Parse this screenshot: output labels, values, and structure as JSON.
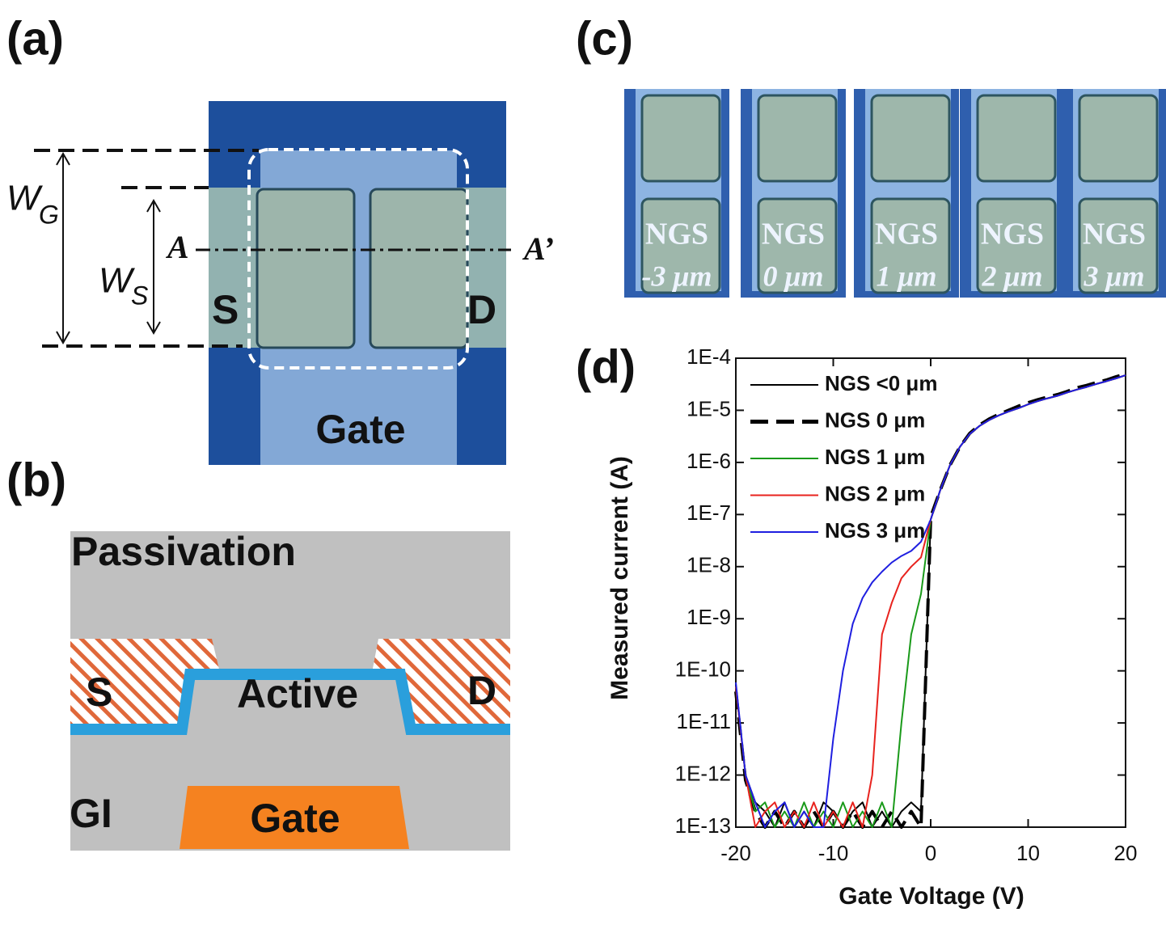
{
  "panel_a": {
    "label": "(a)",
    "wg": {
      "main": "W",
      "sub": "G"
    },
    "ws": {
      "main": "W",
      "sub": "S"
    },
    "section_start": "A",
    "section_end": "A’",
    "source": "S",
    "drain": "D",
    "gate": "Gate"
  },
  "panel_b": {
    "label": "(b)",
    "passivation": "Passivation",
    "source": "S",
    "active": "Active",
    "drain": "D",
    "gi": "GI",
    "gate": "Gate"
  },
  "panel_c": {
    "label": "(c)",
    "images": [
      {
        "line1": "NGS",
        "line2": "-3 μm"
      },
      {
        "line1": "NGS",
        "line2": "0 μm"
      },
      {
        "line1": "NGS",
        "line2": "1 μm"
      },
      {
        "line1": "NGS",
        "line2": "2 μm"
      },
      {
        "line1": "NGS",
        "line2": "3 μm"
      }
    ]
  },
  "chart_data": {
    "type": "line",
    "panel_label": "(d)",
    "x_label": "Gate Voltage (V)",
    "y_label": "Measured current (A)",
    "log_y": true,
    "xlim": [
      -20,
      20
    ],
    "xticks": [
      -20,
      -10,
      0,
      10,
      20
    ],
    "ylim": [
      1e-13,
      0.0001
    ],
    "yticks": [
      {
        "value": 1e-13,
        "label": "1E-13"
      },
      {
        "value": 1e-12,
        "label": "1E-12"
      },
      {
        "value": 1e-11,
        "label": "1E-11"
      },
      {
        "value": 1e-10,
        "label": "1E-10"
      },
      {
        "value": 1e-09,
        "label": "1E-9"
      },
      {
        "value": 1e-08,
        "label": "1E-8"
      },
      {
        "value": 1e-07,
        "label": "1E-7"
      },
      {
        "value": 1e-06,
        "label": "1E-6"
      },
      {
        "value": 1e-05,
        "label": "1E-5"
      },
      {
        "value": 0.0001,
        "label": "1E-4"
      }
    ],
    "legend": "top-left",
    "x": [
      -20,
      -19,
      -18,
      -17,
      -16,
      -15,
      -14,
      -13,
      -12,
      -11,
      -10,
      -9,
      -8,
      -7,
      -6,
      -5,
      -4,
      -3,
      -2,
      -1,
      0,
      1,
      2,
      3,
      4,
      5,
      6,
      7,
      8,
      9,
      10,
      11,
      12,
      13,
      14,
      15,
      16,
      17,
      18,
      19,
      20
    ],
    "series": [
      {
        "name": "NGS <0 μm",
        "color": "#000000",
        "style": "solid",
        "values": [
          5e-11,
          1e-12,
          3e-13,
          2e-13,
          1e-13,
          3e-13,
          1e-13,
          2e-13,
          1e-13,
          3e-13,
          2e-13,
          1e-13,
          2e-13,
          3e-13,
          1e-13,
          2e-13,
          1e-13,
          2e-13,
          3e-13,
          2e-13,
          8e-08,
          3e-07,
          9e-07,
          2e-06,
          3.5e-06,
          5e-06,
          6.5e-06,
          8e-06,
          9.5e-06,
          1.1e-05,
          1.3e-05,
          1.5e-05,
          1.7e-05,
          1.9e-05,
          2.2e-05,
          2.5e-05,
          2.8e-05,
          3.2e-05,
          3.6e-05,
          4.1e-05,
          4.7e-05
        ]
      },
      {
        "name": "NGS 0 μm",
        "color": "#000000",
        "style": "dashed",
        "values": [
          4e-11,
          8e-13,
          2e-13,
          1e-13,
          2e-13,
          1e-13,
          2e-13,
          1e-13,
          2e-13,
          1e-13,
          2e-13,
          1e-13,
          2e-13,
          1e-13,
          2e-13,
          1e-13,
          2e-13,
          1e-13,
          2e-13,
          1e-13,
          9e-08,
          3e-07,
          9e-07,
          2e-06,
          3.6e-06,
          5.2e-06,
          6.8e-06,
          8.4e-06,
          1e-05,
          1.2e-05,
          1.4e-05,
          1.6e-05,
          1.8e-05,
          2e-05,
          2.3e-05,
          2.7e-05,
          3e-05,
          3.4e-05,
          3.8e-05,
          4.4e-05,
          5e-05
        ]
      },
      {
        "name": "NGS 1 μm",
        "color": "#1a9a1a",
        "style": "solid",
        "values": [
          5e-11,
          1e-12,
          2e-13,
          3e-13,
          1e-13,
          2e-13,
          1e-13,
          3e-13,
          1e-13,
          2e-13,
          1e-13,
          3e-13,
          1e-13,
          2e-13,
          1e-13,
          3e-13,
          1e-13,
          1e-11,
          5e-10,
          3e-09,
          8e-08,
          3e-07,
          9e-07,
          2e-06,
          3.5e-06,
          5e-06,
          6.5e-06,
          8e-06,
          9.5e-06,
          1.1e-05,
          1.3e-05,
          1.5e-05,
          1.7e-05,
          1.9e-05,
          2.2e-05,
          2.5e-05,
          2.8e-05,
          3.2e-05,
          3.6e-05,
          4.1e-05,
          4.7e-05
        ]
      },
      {
        "name": "NGS 2 μm",
        "color": "#e8231e",
        "style": "solid",
        "values": [
          5e-11,
          1e-12,
          1e-13,
          2e-13,
          3e-13,
          1e-13,
          2e-13,
          1e-13,
          3e-13,
          1e-13,
          2e-13,
          1e-13,
          3e-13,
          1e-13,
          1e-12,
          5e-10,
          2e-09,
          6e-09,
          1e-08,
          1.5e-08,
          8e-08,
          3e-07,
          9e-07,
          2e-06,
          3.5e-06,
          5e-06,
          6.5e-06,
          8e-06,
          9.5e-06,
          1.1e-05,
          1.3e-05,
          1.5e-05,
          1.7e-05,
          1.9e-05,
          2.2e-05,
          2.5e-05,
          2.8e-05,
          3.2e-05,
          3.6e-05,
          4.1e-05,
          4.7e-05
        ]
      },
      {
        "name": "NGS 3 μm",
        "color": "#1f1fe0",
        "style": "solid",
        "values": [
          6e-11,
          1e-12,
          3e-13,
          1e-13,
          2e-13,
          3e-13,
          1e-13,
          2e-13,
          1e-13,
          1e-13,
          5e-12,
          1e-10,
          8e-10,
          2.5e-09,
          5e-09,
          8e-09,
          1.2e-08,
          1.6e-08,
          2e-08,
          3e-08,
          8e-08,
          3e-07,
          9e-07,
          2e-06,
          3.5e-06,
          5e-06,
          6.5e-06,
          8e-06,
          9.5e-06,
          1.1e-05,
          1.3e-05,
          1.5e-05,
          1.7e-05,
          1.9e-05,
          2.2e-05,
          2.5e-05,
          2.8e-05,
          3.2e-05,
          3.6e-05,
          4.1e-05,
          4.7e-05
        ]
      }
    ]
  }
}
